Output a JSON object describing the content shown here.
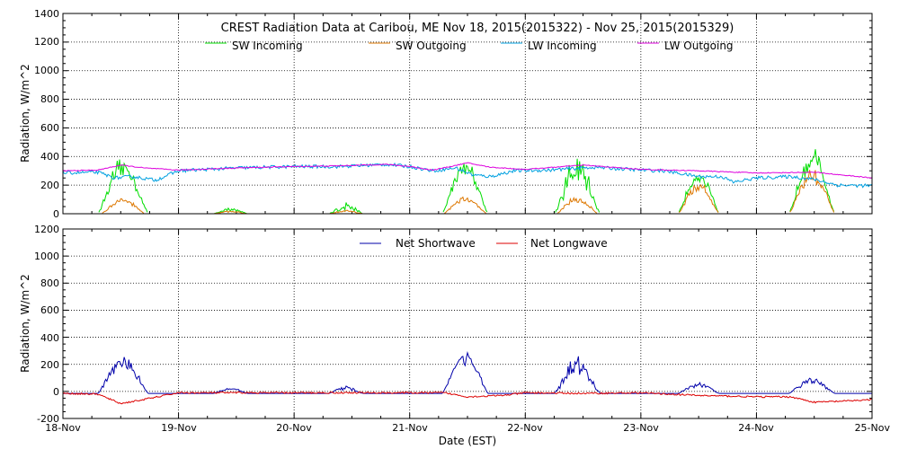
{
  "chart_data": [
    {
      "type": "line",
      "title": "CREST Radiation Data at Caribou, ME   Nov 18, 2015(2015322) - Nov 25, 2015(2015329)",
      "ylabel": "Radiation, W/m^2",
      "xlabel": "",
      "ylim": [
        0,
        1400
      ],
      "yticks": [
        "0",
        "200",
        "400",
        "600",
        "800",
        "1000",
        "1200",
        "1400"
      ],
      "xlim": [
        0,
        7
      ],
      "legend_position": "top",
      "grid": true,
      "series": [
        {
          "name": "SW Incoming",
          "color": "#00dd00",
          "mode": "day",
          "days": [
            {
              "center": 0.52,
              "width": 0.44,
              "peak": 320,
              "spike": 40
            },
            {
              "center": 1.45,
              "width": 0.3,
              "peak": 30,
              "spike": 8
            },
            {
              "center": 2.45,
              "width": 0.3,
              "peak": 50,
              "spike": 25
            },
            {
              "center": 3.48,
              "width": 0.4,
              "peak": 330,
              "spike": 30
            },
            {
              "center": 4.45,
              "width": 0.4,
              "peak": 300,
              "spike": 80
            },
            {
              "center": 5.5,
              "width": 0.36,
              "peak": 260,
              "spike": 25
            },
            {
              "center": 6.48,
              "width": 0.4,
              "peak": 390,
              "spike": 40
            }
          ]
        },
        {
          "name": "SW Outgoing",
          "color": "#dd7700",
          "mode": "day",
          "days": [
            {
              "center": 0.52,
              "width": 0.38,
              "peak": 90,
              "spike": 10
            },
            {
              "center": 1.45,
              "width": 0.3,
              "peak": 15,
              "spike": 5
            },
            {
              "center": 2.45,
              "width": 0.3,
              "peak": 20,
              "spike": 8
            },
            {
              "center": 3.48,
              "width": 0.38,
              "peak": 100,
              "spike": 10
            },
            {
              "center": 4.45,
              "width": 0.36,
              "peak": 100,
              "spike": 20
            },
            {
              "center": 5.5,
              "width": 0.36,
              "peak": 190,
              "spike": 20
            },
            {
              "center": 6.48,
              "width": 0.4,
              "peak": 270,
              "spike": 30
            }
          ]
        },
        {
          "name": "LW Incoming",
          "color": "#00a0e0",
          "mode": "points",
          "noise": 12,
          "points": [
            [
              0,
              285
            ],
            [
              0.3,
              290
            ],
            [
              0.45,
              250
            ],
            [
              0.6,
              260
            ],
            [
              0.8,
              235
            ],
            [
              1.0,
              300
            ],
            [
              1.5,
              320
            ],
            [
              2.0,
              330
            ],
            [
              2.4,
              330
            ],
            [
              2.8,
              345
            ],
            [
              3.0,
              330
            ],
            [
              3.2,
              300
            ],
            [
              3.4,
              320
            ],
            [
              3.55,
              270
            ],
            [
              3.7,
              260
            ],
            [
              3.9,
              300
            ],
            [
              4.2,
              305
            ],
            [
              4.6,
              325
            ],
            [
              5.0,
              305
            ],
            [
              5.2,
              300
            ],
            [
              5.5,
              260
            ],
            [
              5.7,
              260
            ],
            [
              5.8,
              220
            ],
            [
              6.0,
              250
            ],
            [
              6.3,
              260
            ],
            [
              6.5,
              240
            ],
            [
              6.7,
              200
            ],
            [
              7.0,
              195
            ]
          ]
        },
        {
          "name": "LW Outgoing",
          "color": "#dd00dd",
          "mode": "points",
          "noise": 3,
          "points": [
            [
              0,
              300
            ],
            [
              0.3,
              305
            ],
            [
              0.5,
              340
            ],
            [
              0.7,
              320
            ],
            [
              1.0,
              305
            ],
            [
              1.5,
              320
            ],
            [
              2.0,
              330
            ],
            [
              2.4,
              335
            ],
            [
              2.8,
              345
            ],
            [
              3.0,
              330
            ],
            [
              3.2,
              305
            ],
            [
              3.5,
              355
            ],
            [
              3.7,
              325
            ],
            [
              4.0,
              310
            ],
            [
              4.5,
              340
            ],
            [
              5.0,
              310
            ],
            [
              5.5,
              300
            ],
            [
              6.0,
              285
            ],
            [
              6.5,
              290
            ],
            [
              7.0,
              250
            ]
          ]
        }
      ]
    },
    {
      "type": "line",
      "title": "",
      "ylabel": "Radiation, W/m^2",
      "xlabel": "Date (EST)",
      "ylim": [
        -200,
        1200
      ],
      "yticks": [
        "-200",
        "0",
        "200",
        "400",
        "600",
        "800",
        "1000",
        "1200"
      ],
      "xlim": [
        0,
        7
      ],
      "categories": [
        "18-Nov",
        "19-Nov",
        "20-Nov",
        "21-Nov",
        "22-Nov",
        "23-Nov",
        "24-Nov",
        "25-Nov"
      ],
      "legend_position": "top",
      "grid": true,
      "series": [
        {
          "name": "Net Shortwave",
          "color": "#0000aa",
          "mode": "day",
          "base": -15,
          "days": [
            {
              "center": 0.52,
              "width": 0.44,
              "peak": 230,
              "spike": 30
            },
            {
              "center": 1.45,
              "width": 0.3,
              "peak": 35,
              "spike": 8
            },
            {
              "center": 2.45,
              "width": 0.3,
              "peak": 40,
              "spike": 15
            },
            {
              "center": 3.48,
              "width": 0.4,
              "peak": 270,
              "spike": 25
            },
            {
              "center": 4.45,
              "width": 0.4,
              "peak": 200,
              "spike": 60
            },
            {
              "center": 5.5,
              "width": 0.36,
              "peak": 60,
              "spike": 15
            },
            {
              "center": 6.48,
              "width": 0.4,
              "peak": 100,
              "spike": 20
            }
          ]
        },
        {
          "name": "Net Longwave",
          "color": "#dd0000",
          "mode": "points",
          "noise": 6,
          "points": [
            [
              0,
              -15
            ],
            [
              0.3,
              -20
            ],
            [
              0.5,
              -90
            ],
            [
              0.7,
              -60
            ],
            [
              1.0,
              -10
            ],
            [
              1.5,
              -10
            ],
            [
              2.0,
              -10
            ],
            [
              3.0,
              -10
            ],
            [
              3.3,
              -10
            ],
            [
              3.5,
              -40
            ],
            [
              3.8,
              -30
            ],
            [
              4.0,
              -10
            ],
            [
              4.5,
              -15
            ],
            [
              5.0,
              -10
            ],
            [
              5.5,
              -30
            ],
            [
              6.0,
              -40
            ],
            [
              6.3,
              -40
            ],
            [
              6.5,
              -80
            ],
            [
              6.8,
              -70
            ],
            [
              7.0,
              -60
            ]
          ]
        }
      ]
    }
  ]
}
